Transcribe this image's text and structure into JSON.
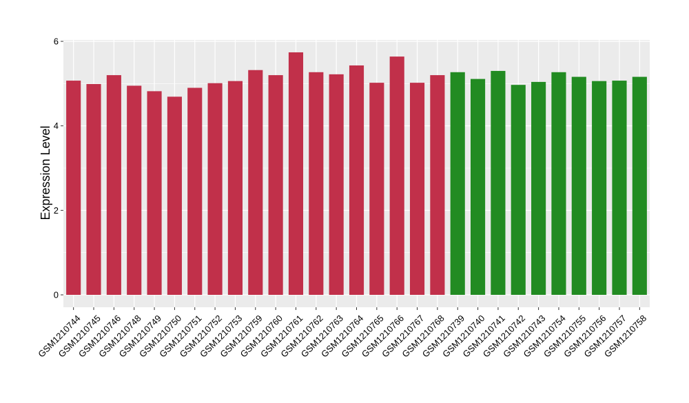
{
  "chart_data": {
    "type": "bar",
    "ylabel": "Expression Level",
    "ylim": [
      0,
      6.15
    ],
    "yticks": [
      0,
      2,
      4,
      6
    ],
    "grid": true,
    "legend": "none",
    "categories": [
      "GSM1210744",
      "GSM1210745",
      "GSM1210746",
      "GSM1210748",
      "GSM1210749",
      "GSM1210750",
      "GSM1210751",
      "GSM1210752",
      "GSM1210753",
      "GSM1210759",
      "GSM1210760",
      "GSM1210761",
      "GSM1210762",
      "GSM1210763",
      "GSM1210764",
      "GSM1210765",
      "GSM1210766",
      "GSM1210767",
      "GSM1210768",
      "GSM1210739",
      "GSM1210740",
      "GSM1210741",
      "GSM1210742",
      "GSM1210743",
      "GSM1210754",
      "GSM1210755",
      "GSM1210756",
      "GSM1210757",
      "GSM1210758"
    ],
    "values": [
      5.07,
      4.99,
      5.2,
      4.95,
      4.82,
      4.69,
      4.9,
      5.01,
      5.06,
      5.32,
      5.2,
      5.74,
      5.27,
      5.22,
      5.43,
      5.02,
      5.64,
      5.02,
      5.2,
      5.27,
      5.11,
      5.3,
      4.97,
      5.04,
      5.27,
      5.16,
      5.06,
      5.07,
      5.16
    ],
    "group_colors": [
      "#c1304a",
      "#228b22"
    ],
    "bar_group": [
      0,
      0,
      0,
      0,
      0,
      0,
      0,
      0,
      0,
      0,
      0,
      0,
      0,
      0,
      0,
      0,
      0,
      0,
      0,
      1,
      1,
      1,
      1,
      1,
      1,
      1,
      1,
      1,
      1
    ],
    "panel_background": "#ebebeb",
    "grid_color": "#ffffff"
  }
}
